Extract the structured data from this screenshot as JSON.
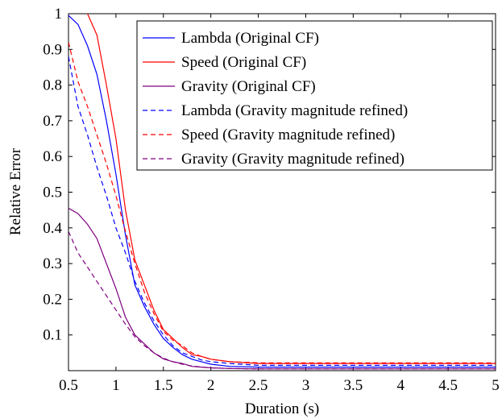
{
  "chart_data": {
    "type": "line",
    "title": "",
    "xlabel": "Duration (s)",
    "ylabel": "Relative Error",
    "xlim": [
      0.5,
      5
    ],
    "ylim": [
      0,
      1
    ],
    "xticks": [
      0.5,
      1,
      1.5,
      2,
      2.5,
      3,
      3.5,
      4,
      4.5,
      5
    ],
    "xtick_labels": [
      "0.5",
      "1",
      "1.5",
      "2",
      "2.5",
      "3",
      "3.5",
      "4",
      "4.5",
      "5"
    ],
    "yticks": [
      0.1,
      0.2,
      0.3,
      0.4,
      0.5,
      0.6,
      0.7,
      0.8,
      0.9,
      1
    ],
    "ytick_labels": [
      "0.1",
      "0.2",
      "0.3",
      "0.4",
      "0.5",
      "0.6",
      "0.7",
      "0.8",
      "0.9",
      "1"
    ],
    "grid": false,
    "legend_position": "top-right",
    "series": [
      {
        "name": "Lambda (Original CF)",
        "color": "#0000ff",
        "dash": "solid",
        "x": [
          0.5,
          0.6,
          0.7,
          0.8,
          0.9,
          1.0,
          1.1,
          1.2,
          1.3,
          1.4,
          1.5,
          1.6,
          1.7,
          1.8,
          1.9,
          2.0,
          2.2,
          2.5,
          3.0,
          3.5,
          4.0,
          4.5,
          5.0
        ],
        "values": [
          0.995,
          0.97,
          0.91,
          0.83,
          0.7,
          0.55,
          0.38,
          0.24,
          0.18,
          0.13,
          0.09,
          0.065,
          0.045,
          0.032,
          0.025,
          0.018,
          0.012,
          0.01,
          0.01,
          0.01,
          0.01,
          0.01,
          0.01
        ]
      },
      {
        "name": "Speed (Original CF)",
        "color": "#ff0000",
        "dash": "solid",
        "x": [
          0.5,
          0.6,
          0.7,
          0.8,
          0.9,
          1.0,
          1.1,
          1.2,
          1.3,
          1.4,
          1.5,
          1.6,
          1.7,
          1.8,
          1.9,
          2.0,
          2.2,
          2.5,
          3.0,
          3.5,
          4.0,
          4.5,
          5.0
        ],
        "values": [
          1.06,
          1.03,
          1.0,
          0.94,
          0.8,
          0.65,
          0.45,
          0.31,
          0.24,
          0.17,
          0.115,
          0.09,
          0.065,
          0.045,
          0.04,
          0.032,
          0.025,
          0.02,
          0.02,
          0.02,
          0.02,
          0.02,
          0.02
        ]
      },
      {
        "name": "Gravity (Original CF)",
        "color": "#7f007f",
        "dash": "solid",
        "x": [
          0.5,
          0.6,
          0.7,
          0.8,
          0.9,
          1.0,
          1.1,
          1.2,
          1.3,
          1.4,
          1.5,
          1.6,
          1.7,
          1.8,
          1.9,
          2.0,
          2.2,
          2.5,
          3.0,
          3.5,
          4.0,
          4.5,
          5.0
        ],
        "values": [
          0.455,
          0.44,
          0.41,
          0.37,
          0.3,
          0.23,
          0.15,
          0.1,
          0.075,
          0.05,
          0.033,
          0.025,
          0.02,
          0.012,
          0.01,
          0.008,
          0.006,
          0.005,
          0.005,
          0.005,
          0.005,
          0.005,
          0.005
        ]
      },
      {
        "name": "Lambda (Gravity magnitude refined)",
        "color": "#0000ff",
        "dash": "dashed",
        "x": [
          0.5,
          0.6,
          0.7,
          0.8,
          0.9,
          1.0,
          1.1,
          1.2,
          1.3,
          1.4,
          1.5,
          1.6,
          1.7,
          1.8,
          1.9,
          2.0,
          2.2,
          2.5,
          3.0,
          3.5,
          4.0,
          4.5,
          5.0
        ],
        "values": [
          0.88,
          0.74,
          0.66,
          0.57,
          0.49,
          0.4,
          0.33,
          0.25,
          0.19,
          0.14,
          0.1,
          0.07,
          0.05,
          0.04,
          0.03,
          0.025,
          0.02,
          0.015,
          0.015,
          0.015,
          0.015,
          0.015,
          0.015
        ]
      },
      {
        "name": "Speed (Gravity magnitude refined)",
        "color": "#ff0000",
        "dash": "dashed",
        "x": [
          0.5,
          0.6,
          0.7,
          0.8,
          0.9,
          1.0,
          1.1,
          1.2,
          1.3,
          1.4,
          1.5,
          1.6,
          1.7,
          1.8,
          1.9,
          2.0,
          2.2,
          2.5,
          3.0,
          3.5,
          4.0,
          4.5,
          5.0
        ],
        "values": [
          0.92,
          0.81,
          0.74,
          0.66,
          0.58,
          0.49,
          0.39,
          0.3,
          0.22,
          0.16,
          0.11,
          0.085,
          0.07,
          0.05,
          0.04,
          0.032,
          0.025,
          0.022,
          0.022,
          0.022,
          0.022,
          0.022,
          0.022
        ]
      },
      {
        "name": "Gravity (Gravity magnitude refined)",
        "color": "#7f007f",
        "dash": "dashed",
        "x": [
          0.5,
          0.6,
          0.7,
          0.8,
          0.9,
          1.0,
          1.1,
          1.2,
          1.3,
          1.4,
          1.5,
          1.6,
          1.7,
          1.8,
          1.9,
          2.0,
          2.2,
          2.5,
          3.0,
          3.5,
          4.0,
          4.5,
          5.0
        ],
        "values": [
          0.39,
          0.33,
          0.29,
          0.25,
          0.21,
          0.17,
          0.13,
          0.095,
          0.07,
          0.05,
          0.035,
          0.025,
          0.018,
          0.013,
          0.01,
          0.008,
          0.006,
          0.005,
          0.005,
          0.005,
          0.005,
          0.005,
          0.005
        ]
      }
    ]
  }
}
